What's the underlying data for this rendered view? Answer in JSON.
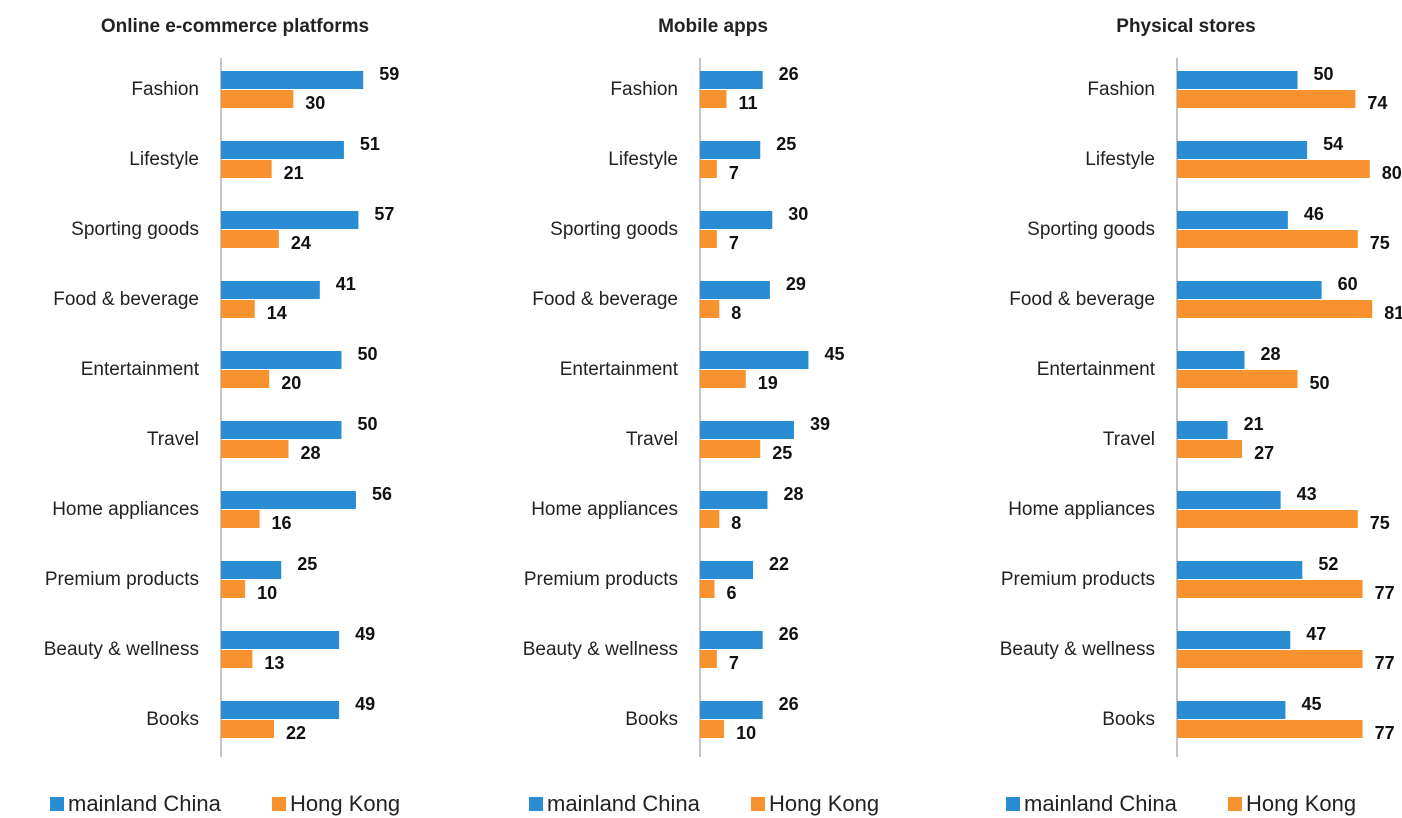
{
  "chart_data": [
    {
      "type": "bar",
      "orientation": "horizontal",
      "title": "Online e-commerce platforms",
      "categories": [
        "Fashion",
        "Lifestyle",
        "Sporting goods",
        "Food & beverage",
        "Entertainment",
        "Travel",
        "Home appliances",
        "Premium products",
        "Beauty & wellness",
        "Books"
      ],
      "series": [
        {
          "name": "mainland China",
          "color": "#2a8dd4",
          "values": [
            59,
            51,
            57,
            41,
            50,
            50,
            56,
            25,
            49,
            49
          ]
        },
        {
          "name": "Hong Kong",
          "color": "#f7922f",
          "values": [
            30,
            21,
            24,
            14,
            20,
            28,
            16,
            10,
            13,
            22
          ]
        }
      ],
      "legend": "bottom"
    },
    {
      "type": "bar",
      "orientation": "horizontal",
      "title": "Mobile apps",
      "categories": [
        "Fashion",
        "Lifestyle",
        "Sporting goods",
        "Food & beverage",
        "Entertainment",
        "Travel",
        "Home appliances",
        "Premium products",
        "Beauty & wellness",
        "Books"
      ],
      "series": [
        {
          "name": "mainland China",
          "color": "#2a8dd4",
          "values": [
            26,
            25,
            30,
            29,
            45,
            39,
            28,
            22,
            26,
            26
          ]
        },
        {
          "name": "Hong Kong",
          "color": "#f7922f",
          "values": [
            11,
            7,
            7,
            8,
            19,
            25,
            8,
            6,
            7,
            10
          ]
        }
      ],
      "legend": "bottom"
    },
    {
      "type": "bar",
      "orientation": "horizontal",
      "title": "Physical stores",
      "categories": [
        "Fashion",
        "Lifestyle",
        "Sporting goods",
        "Food & beverage",
        "Entertainment",
        "Travel",
        "Home appliances",
        "Premium products",
        "Beauty & wellness",
        "Books"
      ],
      "series": [
        {
          "name": "mainland China",
          "color": "#2a8dd4",
          "values": [
            50,
            54,
            46,
            60,
            28,
            21,
            43,
            52,
            47,
            45
          ]
        },
        {
          "name": "Hong Kong",
          "color": "#f7922f",
          "values": [
            74,
            80,
            75,
            81,
            50,
            27,
            75,
            77,
            77,
            77
          ]
        }
      ],
      "legend": "bottom"
    }
  ]
}
